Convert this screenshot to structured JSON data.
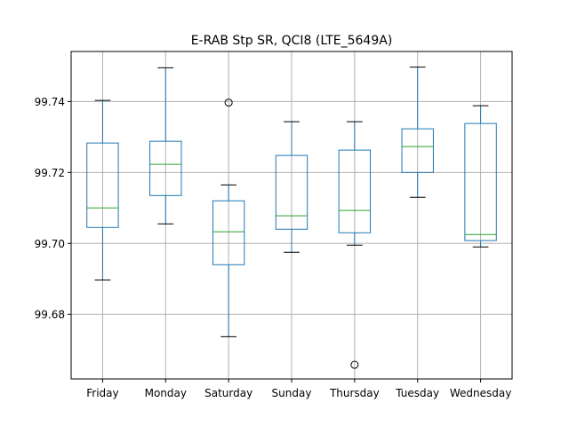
{
  "chart_data": {
    "type": "box",
    "title": "E-RAB Stp SR, QCI8 (LTE_5649A)",
    "xlabel": "",
    "ylabel": "",
    "ylim": [
      99.6618,
      99.7541
    ],
    "yticks": [
      99.68,
      99.7,
      99.72,
      99.74
    ],
    "ytick_labels": [
      "99.68",
      "99.70",
      "99.72",
      "99.74"
    ],
    "grid": true,
    "categories": [
      "Friday",
      "Monday",
      "Saturday",
      "Sunday",
      "Thursday",
      "Tuesday",
      "Wednesday"
    ],
    "boxes": [
      {
        "category": "Friday",
        "whisker_low": 99.6897,
        "q1": 99.7045,
        "median": 99.71,
        "q3": 99.7283,
        "whisker_high": 99.7403,
        "outliers": []
      },
      {
        "category": "Monday",
        "whisker_low": 99.7055,
        "q1": 99.7135,
        "median": 99.7223,
        "q3": 99.7288,
        "whisker_high": 99.7495,
        "outliers": []
      },
      {
        "category": "Saturday",
        "whisker_low": 99.6737,
        "q1": 99.694,
        "median": 99.7033,
        "q3": 99.712,
        "whisker_high": 99.7165,
        "outliers": [
          99.7397
        ]
      },
      {
        "category": "Sunday",
        "whisker_low": 99.6975,
        "q1": 99.704,
        "median": 99.7078,
        "q3": 99.7248,
        "whisker_high": 99.7343,
        "outliers": []
      },
      {
        "category": "Thursday",
        "whisker_low": 99.6995,
        "q1": 99.703,
        "median": 99.7093,
        "q3": 99.7263,
        "whisker_high": 99.7343,
        "outliers": [
          99.6658
        ]
      },
      {
        "category": "Tuesday",
        "whisker_low": 99.713,
        "q1": 99.72,
        "median": 99.7273,
        "q3": 99.7323,
        "whisker_high": 99.7497,
        "outliers": []
      },
      {
        "category": "Wednesday",
        "whisker_low": 99.699,
        "q1": 99.7008,
        "median": 99.7025,
        "q3": 99.7338,
        "whisker_high": 99.7388,
        "outliers": []
      }
    ],
    "colors": {
      "box": "#1f77b4",
      "median": "#2ca02c",
      "whisker": "#1f77b4",
      "cap": "#000000",
      "grid": "#b0b0b0"
    }
  }
}
